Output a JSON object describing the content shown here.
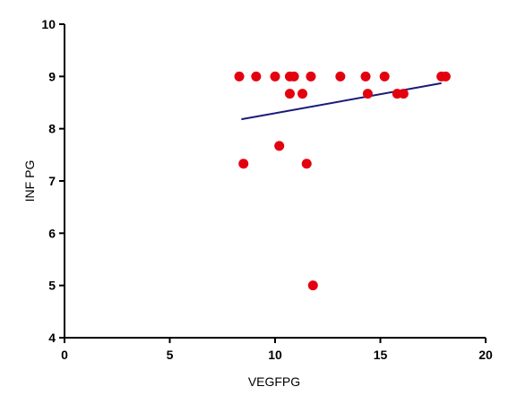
{
  "chart_data": {
    "type": "scatter",
    "xlabel": "VEGFPG",
    "ylabel": "INF PG",
    "xlim": [
      0,
      20
    ],
    "ylim": [
      4,
      10
    ],
    "x_ticks": [
      0,
      5,
      10,
      15,
      20
    ],
    "y_ticks": [
      4,
      5,
      6,
      7,
      8,
      9,
      10
    ],
    "grid": false,
    "legend": "none",
    "colors": {
      "points": "#e3000f",
      "fit_line": "#1a1a7a",
      "axes": "#000000"
    },
    "series": [
      {
        "points": [
          {
            "x": 8.3,
            "y": 9.0
          },
          {
            "x": 9.1,
            "y": 9.0
          },
          {
            "x": 10.0,
            "y": 9.0
          },
          {
            "x": 10.7,
            "y": 9.0
          },
          {
            "x": 10.9,
            "y": 9.0
          },
          {
            "x": 11.7,
            "y": 9.0
          },
          {
            "x": 13.1,
            "y": 9.0
          },
          {
            "x": 14.3,
            "y": 9.0
          },
          {
            "x": 15.2,
            "y": 9.0
          },
          {
            "x": 17.9,
            "y": 9.0
          },
          {
            "x": 18.1,
            "y": 9.0
          },
          {
            "x": 10.7,
            "y": 8.67
          },
          {
            "x": 11.3,
            "y": 8.67
          },
          {
            "x": 14.4,
            "y": 8.67
          },
          {
            "x": 15.8,
            "y": 8.67
          },
          {
            "x": 16.1,
            "y": 8.67
          },
          {
            "x": 10.2,
            "y": 7.67
          },
          {
            "x": 8.5,
            "y": 7.33
          },
          {
            "x": 11.5,
            "y": 7.33
          },
          {
            "x": 11.8,
            "y": 5.0
          }
        ]
      }
    ],
    "fit_line": {
      "x": [
        8.4,
        17.9
      ],
      "y": [
        8.18,
        8.87
      ]
    }
  }
}
